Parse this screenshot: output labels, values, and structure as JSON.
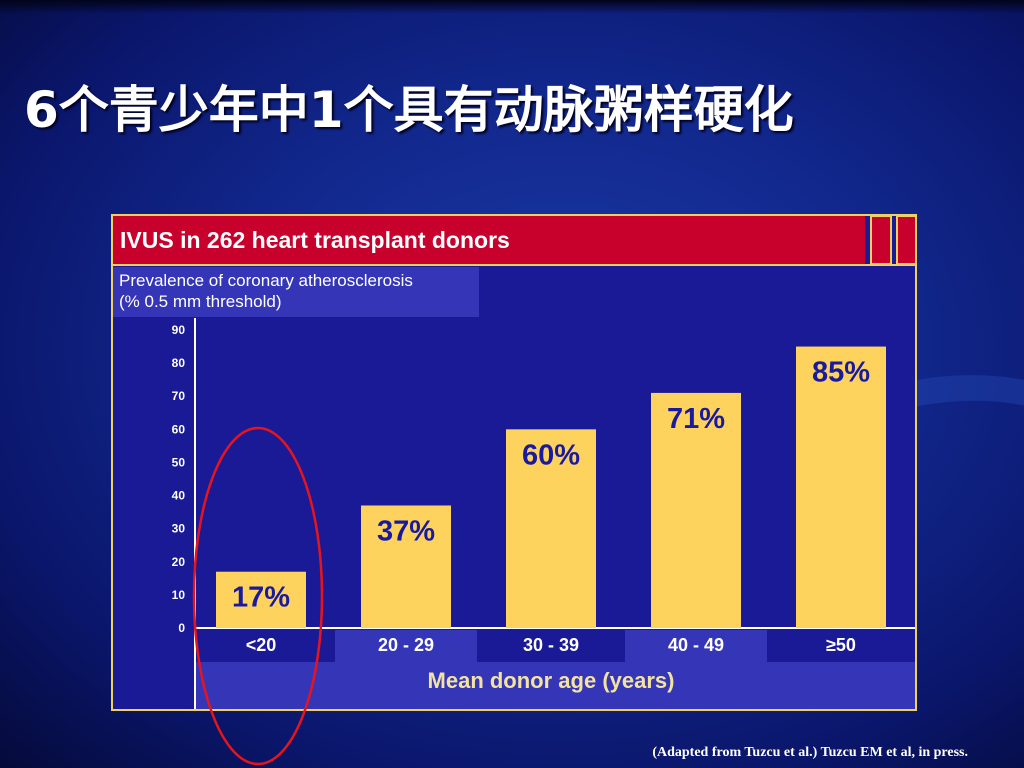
{
  "slide": {
    "title": "6个青少年中1个具有动脉粥样硬化",
    "caption": "(Adapted from Tuzcu et al.) Tuzcu EM et al, in press."
  },
  "colors": {
    "bar": "#fdd35e",
    "bar_label": "#1a1aa0",
    "banner": "#c8002c",
    "panel": "#1a1a96",
    "ylabel_box": "#3535b8",
    "highlight_ellipse": "#e8141c"
  },
  "chart_data": {
    "type": "bar",
    "title": "IVUS in 262 heart transplant donors",
    "ylabel": [
      "Prevalence of coronary atherosclerosis",
      "(% 0.5 mm threshold)"
    ],
    "xlabel": "Mean donor age (years)",
    "categories": [
      "<20",
      "20 - 29",
      "30 - 39",
      "40 - 49",
      "≥50"
    ],
    "values": [
      17,
      37,
      60,
      71,
      85
    ],
    "value_labels": [
      "17%",
      "37%",
      "60%",
      "71%",
      "85%"
    ],
    "yticks": [
      "0",
      "10",
      "20",
      "30",
      "40",
      "50",
      "60",
      "70",
      "80",
      "90"
    ],
    "ylim": [
      0,
      90
    ],
    "grid": false,
    "legend": "none",
    "highlight": "<20"
  }
}
